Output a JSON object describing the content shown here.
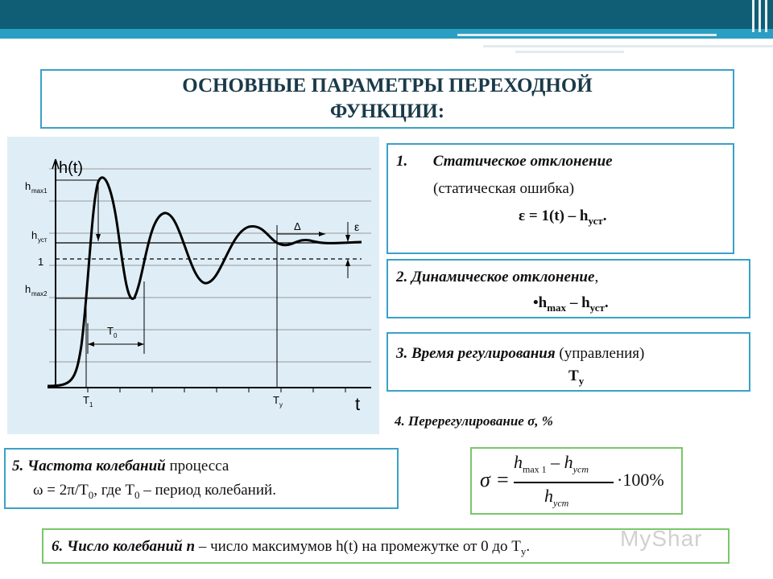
{
  "title": "ОСНОВНЫЕ ПАРАМЕТРЫ ПЕРЕХОДНОЙ ФУНКЦИИ:",
  "graph": {
    "y_label": "h(t)",
    "x_label": "t",
    "hmax1": "h",
    "hmax1_sub": "max1",
    "hust": "h",
    "hust_sub": "уст",
    "one": "1",
    "hmax2": "h",
    "hmax2_sub": "max2",
    "T0": "T",
    "T0_sub": "0",
    "T1": "T",
    "T1_sub": "1",
    "Ty": "T",
    "Ty_sub": "у",
    "delta": "Δ",
    "eps": "ε"
  },
  "box1": {
    "num": "1.",
    "title": "Статическое отклонение",
    "sub": "(статическая ошибка)",
    "formula_a": "ε = 1(t) – h",
    "formula_sub": "уст",
    "formula_end": "."
  },
  "box2": {
    "title": "2. Динамическое отклонение",
    "comma": ",",
    "formula_a": "•h",
    "formula_sub1": "max",
    "formula_b": " – h",
    "formula_sub2": "уст",
    "formula_end": "."
  },
  "box3": {
    "title": "3. Время регулирования",
    "rest": " (управления)",
    "t": "T",
    "t_sub": "у"
  },
  "item4": "4. Перерегулирование σ, %",
  "box5": {
    "title": "5. Частота колебаний",
    "rest": " процесса",
    "line2a": "ω = 2π/T",
    "line2_sub": "0",
    "line2b": ", где T",
    "line2_sub2": "0",
    "line2c": " – период колебаний."
  },
  "formula": {
    "sigma": "σ =",
    "num_a": "h",
    "num_a_sub": "max 1",
    "minus": " – ",
    "num_b": "h",
    "num_b_sub": "уст",
    "mult": "·100%",
    "den": "h",
    "den_sub": "уст"
  },
  "box6": {
    "title": "6. Число колебаний n",
    "rest": " – число максимумов h(t) на промежутке от 0 до T",
    "sub": "у",
    "end": "."
  },
  "watermark": "MyShar",
  "colors": {
    "accent": "#3aa1c8",
    "dark": "#0f5e75",
    "green": "#7ac76a",
    "panel": "#dfeef6"
  }
}
